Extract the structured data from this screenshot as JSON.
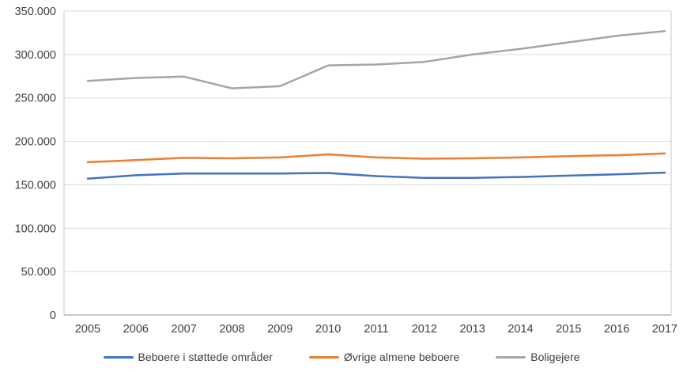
{
  "chart_data": {
    "type": "line",
    "title": "",
    "xlabel": "",
    "ylabel": "",
    "x": [
      2005,
      2006,
      2007,
      2008,
      2009,
      2010,
      2011,
      2012,
      2013,
      2014,
      2015,
      2016,
      2017
    ],
    "series": [
      {
        "name": "Beboere i støttede områder",
        "color": "#4472C4",
        "values": [
          157000,
          161000,
          163000,
          163000,
          163000,
          163500,
          160000,
          158000,
          158000,
          159000,
          160500,
          162000,
          164000
        ]
      },
      {
        "name": "Øvrige almene beboere",
        "color": "#ED7D31",
        "values": [
          176000,
          178500,
          181000,
          180500,
          181500,
          185000,
          181500,
          180000,
          180500,
          181500,
          183000,
          184000,
          186000
        ]
      },
      {
        "name": "Boligejere",
        "color": "#A5A5A5",
        "values": [
          269500,
          273000,
          274500,
          261000,
          263500,
          287500,
          288500,
          291500,
          300000,
          306500,
          314000,
          321500,
          327000
        ]
      }
    ],
    "ylim": [
      0,
      350000
    ],
    "ytick_step": 50000,
    "ytick_labels": [
      "0",
      "50.000",
      "100.000",
      "150.000",
      "200.000",
      "250.000",
      "300.000",
      "350.000"
    ],
    "grid": true,
    "legend_position": "bottom",
    "axis_text_color": "#404040",
    "gridline_color": "#D9D9D9",
    "border_color": "#C9C9C9",
    "axis_line_color": "#A6A6A6"
  }
}
